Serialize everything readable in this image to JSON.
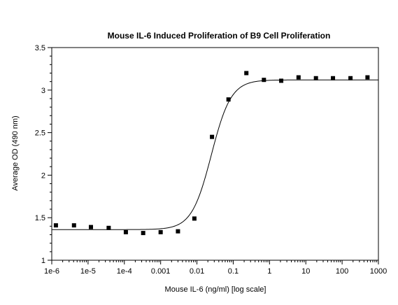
{
  "chart_data": {
    "type": "scatter",
    "title": "Mouse IL-6 Induced Proliferation of B9 Cell Proliferation",
    "xlabel": "Mouse IL-6 (ng/ml) [log scale]",
    "ylabel": "Average OD (490 nm)",
    "x_scale": "log",
    "xlim": [
      1e-06,
      1000
    ],
    "ylim": [
      1,
      3.5
    ],
    "x_ticks": [
      {
        "value": 1e-06,
        "label": "1e-6"
      },
      {
        "value": 1e-05,
        "label": "1e-5"
      },
      {
        "value": 0.0001,
        "label": "1e-4"
      },
      {
        "value": 0.001,
        "label": "0.001"
      },
      {
        "value": 0.01,
        "label": "0.01"
      },
      {
        "value": 0.1,
        "label": "0.1"
      },
      {
        "value": 1,
        "label": "1"
      },
      {
        "value": 10,
        "label": "10"
      },
      {
        "value": 100,
        "label": "100"
      },
      {
        "value": 1000,
        "label": "1000"
      }
    ],
    "y_ticks": [
      {
        "value": 1,
        "label": "1"
      },
      {
        "value": 1.5,
        "label": "1.5"
      },
      {
        "value": 2,
        "label": "2"
      },
      {
        "value": 2.5,
        "label": "2.5"
      },
      {
        "value": 3,
        "label": "3"
      },
      {
        "value": 3.5,
        "label": "3.5"
      }
    ],
    "grid": false,
    "points": [
      {
        "x": 1.3e-06,
        "y": 1.41
      },
      {
        "x": 4.1e-06,
        "y": 1.41
      },
      {
        "x": 1.2e-05,
        "y": 1.39
      },
      {
        "x": 3.7e-05,
        "y": 1.38
      },
      {
        "x": 0.00011,
        "y": 1.33
      },
      {
        "x": 0.00033,
        "y": 1.32
      },
      {
        "x": 0.001,
        "y": 1.33
      },
      {
        "x": 0.003,
        "y": 1.34
      },
      {
        "x": 0.0085,
        "y": 1.49
      },
      {
        "x": 0.026,
        "y": 2.45
      },
      {
        "x": 0.074,
        "y": 2.89
      },
      {
        "x": 0.23,
        "y": 3.2
      },
      {
        "x": 0.7,
        "y": 3.12
      },
      {
        "x": 2.1,
        "y": 3.11
      },
      {
        "x": 6.3,
        "y": 3.15
      },
      {
        "x": 19,
        "y": 3.14
      },
      {
        "x": 56,
        "y": 3.14
      },
      {
        "x": 170,
        "y": 3.14
      },
      {
        "x": 500,
        "y": 3.15
      }
    ],
    "fit_curve": {
      "model": "4PL",
      "bottom": 1.36,
      "top": 3.12,
      "ec50": 0.025,
      "hill": 1.6
    },
    "colors": {
      "marker": "#000000",
      "curve": "#000000",
      "axis": "#000000",
      "background": "#ffffff"
    }
  }
}
